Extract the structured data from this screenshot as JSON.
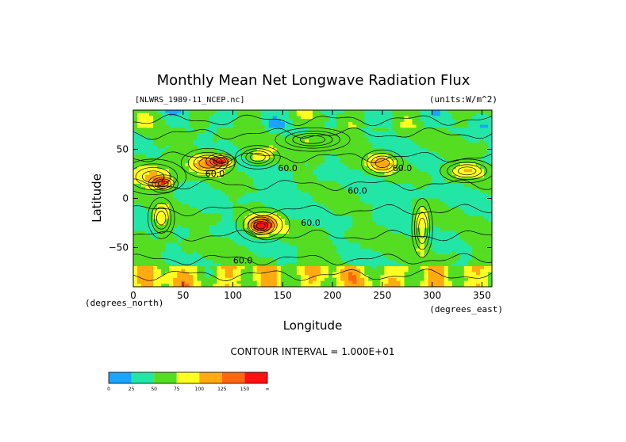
{
  "chart_data": {
    "type": "heatmap",
    "title": "Monthly Mean Net Longwave Radiation Flux",
    "source_label": "[NLWRS_1989-11_NCEP.nc]",
    "units_label": "(units:W/m^2)",
    "xlabel": "Longitude",
    "ylabel": "Latitude",
    "x_unit_label": "(degrees_east)",
    "y_unit_label": "(degrees_north)",
    "xlim": [
      0,
      360
    ],
    "ylim": [
      -90,
      90
    ],
    "xticks": [
      "0",
      "50",
      "100",
      "150",
      "200",
      "250",
      "300",
      "350"
    ],
    "yticks": [
      "50",
      "0",
      "−50"
    ],
    "xtick_values": [
      0,
      50,
      100,
      150,
      200,
      250,
      300,
      350
    ],
    "ytick_values": [
      50,
      0,
      -50
    ],
    "contour_interval_label": "CONTOUR INTERVAL = 1.000E+01",
    "contour_labels": [
      {
        "text": "60.0",
        "lon": 155,
        "lat": 28
      },
      {
        "text": "60.0",
        "lon": 225,
        "lat": 5
      },
      {
        "text": "60.0",
        "lon": 270,
        "lat": 28
      },
      {
        "text": "60.0",
        "lon": 82,
        "lat": 22
      },
      {
        "text": "60.0",
        "lon": 178,
        "lat": -28
      },
      {
        "text": "60.0",
        "lon": 110,
        "lat": -66
      }
    ],
    "colorbar": {
      "ticks": [
        "0",
        "25",
        "50",
        "75",
        "100",
        "125",
        "150",
        "∞"
      ],
      "colors": [
        "#1aa3ff",
        "#22e6a6",
        "#55dd22",
        "#ffff22",
        "#ffaa11",
        "#ff6611",
        "#ff1111"
      ]
    },
    "features": [
      {
        "lon": 20,
        "lat": 22,
        "level": 110,
        "rx": 22,
        "ry": 12
      },
      {
        "lon": 30,
        "lat": 15,
        "level": 130,
        "rx": 10,
        "ry": 6
      },
      {
        "lon": 75,
        "lat": 36,
        "level": 110,
        "rx": 18,
        "ry": 10
      },
      {
        "lon": 88,
        "lat": 38,
        "level": 130,
        "rx": 10,
        "ry": 5
      },
      {
        "lon": 130,
        "lat": -27,
        "level": 110,
        "rx": 18,
        "ry": 12
      },
      {
        "lon": 128,
        "lat": -28,
        "level": 130,
        "rx": 9,
        "ry": 6
      },
      {
        "lon": 28,
        "lat": -20,
        "level": 100,
        "rx": 9,
        "ry": 14
      },
      {
        "lon": 250,
        "lat": 36,
        "level": 105,
        "rx": 14,
        "ry": 9
      },
      {
        "lon": 290,
        "lat": -30,
        "level": 105,
        "rx": 7,
        "ry": 20
      },
      {
        "lon": 180,
        "lat": 60,
        "level": 85,
        "rx": 25,
        "ry": 8
      },
      {
        "lon": 335,
        "lat": 28,
        "level": 95,
        "rx": 18,
        "ry": 8
      },
      {
        "lon": 125,
        "lat": 42,
        "level": 90,
        "rx": 15,
        "ry": 8
      }
    ]
  }
}
